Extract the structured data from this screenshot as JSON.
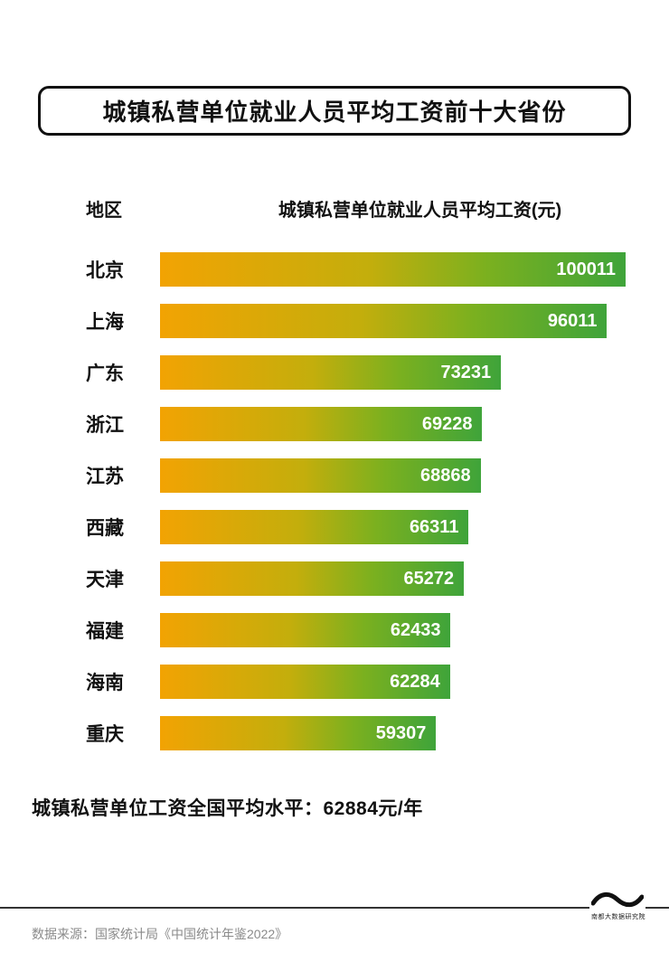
{
  "title": "城镇私营单位就业人员平均工资前十大省份",
  "table": {
    "region_header": "地区",
    "value_header": "城镇私营单位就业人员平均工资(元)"
  },
  "chart_data": {
    "type": "bar",
    "orientation": "horizontal",
    "title": "城镇私营单位就业人员平均工资前十大省份",
    "xlabel": "城镇私营单位就业人员平均工资(元)",
    "ylabel": "地区",
    "categories": [
      "北京",
      "上海",
      "广东",
      "浙江",
      "江苏",
      "西藏",
      "天津",
      "福建",
      "海南",
      "重庆"
    ],
    "values": [
      100011,
      96011,
      73231,
      69228,
      68868,
      66311,
      65272,
      62433,
      62284,
      59307
    ],
    "xlim": [
      0,
      100011
    ],
    "grid": false,
    "bar_gradient": [
      "#f2a303",
      "#3fa43a"
    ],
    "value_label_color": "#ffffff"
  },
  "footer": {
    "summary": "城镇私营单位工资全国平均水平：62884元/年",
    "source": "数据来源：国家统计局《中国统计年鉴2022》",
    "logo_text": "南都大数据研究院"
  }
}
